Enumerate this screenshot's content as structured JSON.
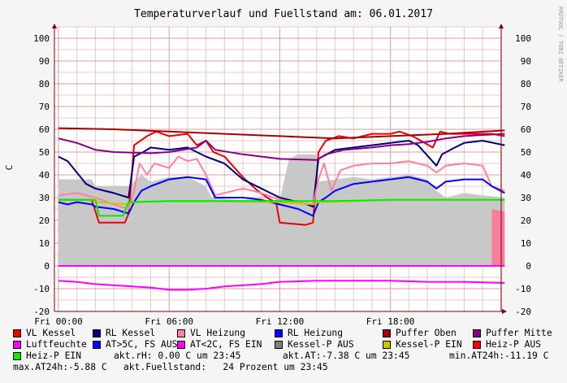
{
  "chart_data": {
    "type": "line",
    "title": "Temperaturverlauf und Fuellstand am: 06.01.2017",
    "watermark": "RRDTOOL / TOBI OETIKER",
    "ylabel": "C",
    "ylim": [
      -20,
      105
    ],
    "grid": true,
    "x_ticks": [
      {
        "label": "Fri 00:00",
        "h": 0
      },
      {
        "label": "Fri 06:00",
        "h": 6
      },
      {
        "label": "Fri 12:00",
        "h": 12
      },
      {
        "label": "Fri 18:00",
        "h": 18
      }
    ],
    "y_ticks_left": [
      "100",
      "90",
      "80",
      "70",
      "60",
      "50",
      "40",
      "30",
      "20",
      "10",
      "0",
      "-10",
      "-20"
    ],
    "y_ticks_right": [
      "100",
      "90",
      "80",
      "70",
      "60",
      "50",
      "40",
      "30",
      "20",
      "10",
      "0",
      "-10",
      "-20"
    ],
    "series": [
      {
        "name": "VL Kessel",
        "color": "#ee0000",
        "kind": "line",
        "points": [
          [
            0,
            29
          ],
          [
            1.8,
            29
          ],
          [
            2.2,
            19
          ],
          [
            3.6,
            19
          ],
          [
            3.8,
            23
          ],
          [
            4.1,
            53
          ],
          [
            4.8,
            57
          ],
          [
            5.3,
            59
          ],
          [
            6,
            57
          ],
          [
            7,
            58
          ],
          [
            7.5,
            53
          ],
          [
            8,
            55
          ],
          [
            8.4,
            50
          ],
          [
            9,
            48
          ],
          [
            10,
            39
          ],
          [
            10.8,
            33
          ],
          [
            11.5,
            29
          ],
          [
            11.8,
            28
          ],
          [
            12,
            19
          ],
          [
            13.4,
            18
          ],
          [
            13.8,
            19
          ],
          [
            14.1,
            50
          ],
          [
            14.5,
            55
          ],
          [
            15.2,
            57
          ],
          [
            16,
            56
          ],
          [
            17,
            58
          ],
          [
            18,
            58
          ],
          [
            18.5,
            59
          ],
          [
            19.2,
            57
          ],
          [
            20.3,
            52
          ],
          [
            20.7,
            59
          ],
          [
            21.2,
            58
          ],
          [
            22,
            58
          ],
          [
            23.5,
            58
          ],
          [
            24.2,
            57
          ]
        ]
      },
      {
        "name": "RL Kessel",
        "color": "#000080",
        "kind": "line",
        "points": [
          [
            0,
            48
          ],
          [
            0.5,
            46
          ],
          [
            1,
            41
          ],
          [
            1.5,
            36
          ],
          [
            2,
            34
          ],
          [
            3,
            32
          ],
          [
            3.8,
            30
          ],
          [
            4.1,
            48
          ],
          [
            4.6,
            50
          ],
          [
            5,
            52
          ],
          [
            6,
            51
          ],
          [
            7,
            52
          ],
          [
            7.5,
            50
          ],
          [
            8,
            48
          ],
          [
            9,
            45
          ],
          [
            10,
            38
          ],
          [
            11,
            34
          ],
          [
            12,
            30
          ],
          [
            13.5,
            27
          ],
          [
            13.8,
            26
          ],
          [
            14.1,
            47
          ],
          [
            15,
            51
          ],
          [
            16,
            52
          ],
          [
            17,
            53
          ],
          [
            18,
            54
          ],
          [
            19,
            55
          ],
          [
            19.5,
            53
          ],
          [
            20.5,
            44
          ],
          [
            20.8,
            49
          ],
          [
            21.5,
            52
          ],
          [
            22,
            54
          ],
          [
            23,
            55
          ],
          [
            24.2,
            53
          ]
        ]
      },
      {
        "name": "VL Heizung",
        "color": "#ff80a0",
        "kind": "line",
        "points": [
          [
            0,
            31
          ],
          [
            1,
            32
          ],
          [
            2,
            30
          ],
          [
            3,
            27
          ],
          [
            3.8,
            25
          ],
          [
            4.1,
            33
          ],
          [
            4.4,
            45
          ],
          [
            4.8,
            40
          ],
          [
            5.2,
            45
          ],
          [
            6,
            43
          ],
          [
            6.5,
            48
          ],
          [
            7,
            46
          ],
          [
            7.5,
            47
          ],
          [
            8,
            40
          ],
          [
            8.5,
            31
          ],
          [
            9,
            32
          ],
          [
            10,
            34
          ],
          [
            11,
            32
          ],
          [
            12,
            29
          ],
          [
            13,
            28
          ],
          [
            13.8,
            27
          ],
          [
            14.1,
            38
          ],
          [
            14.4,
            45
          ],
          [
            14.8,
            33
          ],
          [
            15.3,
            42
          ],
          [
            16,
            44
          ],
          [
            17,
            45
          ],
          [
            18,
            45
          ],
          [
            19,
            46
          ],
          [
            20,
            44
          ],
          [
            20.5,
            41
          ],
          [
            21,
            44
          ],
          [
            22,
            45
          ],
          [
            23,
            44
          ],
          [
            23.5,
            35
          ],
          [
            24.2,
            33
          ]
        ]
      },
      {
        "name": "RL Heizung",
        "color": "#0000ff",
        "kind": "line",
        "points": [
          [
            0,
            28
          ],
          [
            0.5,
            27
          ],
          [
            1,
            28
          ],
          [
            1.8,
            27
          ],
          [
            2,
            26
          ],
          [
            3,
            25
          ],
          [
            3.8,
            23
          ],
          [
            4.1,
            28
          ],
          [
            4.5,
            33
          ],
          [
            5,
            35
          ],
          [
            6,
            38
          ],
          [
            7,
            39
          ],
          [
            8,
            38
          ],
          [
            8.5,
            30
          ],
          [
            9,
            30
          ],
          [
            10,
            30
          ],
          [
            11,
            29
          ],
          [
            12,
            27
          ],
          [
            13,
            25
          ],
          [
            13.8,
            22
          ],
          [
            14.1,
            28
          ],
          [
            14.5,
            30
          ],
          [
            15,
            33
          ],
          [
            16,
            36
          ],
          [
            17,
            37
          ],
          [
            18,
            38
          ],
          [
            19,
            39
          ],
          [
            20,
            37
          ],
          [
            20.5,
            34
          ],
          [
            21,
            37
          ],
          [
            22,
            38
          ],
          [
            23,
            38
          ],
          [
            23.5,
            35
          ],
          [
            24.2,
            32
          ]
        ]
      },
      {
        "name": "Puffer Oben",
        "color": "#aa0000",
        "kind": "line",
        "points": [
          [
            0,
            60.5
          ],
          [
            3,
            60
          ],
          [
            6,
            59
          ],
          [
            9,
            58
          ],
          [
            12,
            57
          ],
          [
            15,
            56
          ],
          [
            18,
            57
          ],
          [
            21,
            58
          ],
          [
            24.2,
            59.5
          ]
        ]
      },
      {
        "name": "Puffer Mitte",
        "color": "#880088",
        "kind": "line",
        "points": [
          [
            0,
            56
          ],
          [
            1,
            54
          ],
          [
            2,
            51
          ],
          [
            3,
            50
          ],
          [
            5,
            49.5
          ],
          [
            6,
            50
          ],
          [
            7.5,
            52
          ],
          [
            8,
            55
          ],
          [
            8.5,
            51
          ],
          [
            10,
            49
          ],
          [
            12,
            47
          ],
          [
            14,
            46.5
          ],
          [
            14.5,
            49
          ],
          [
            15.5,
            51
          ],
          [
            17,
            52
          ],
          [
            18,
            53
          ],
          [
            19,
            53.5
          ],
          [
            20,
            54.5
          ],
          [
            21,
            56
          ],
          [
            22,
            57
          ],
          [
            23,
            57.5
          ],
          [
            24.2,
            58
          ]
        ]
      },
      {
        "name": "Luftfeuchte",
        "color": "#ff00ff",
        "kind": "line",
        "points": [
          [
            0,
            0
          ],
          [
            24.2,
            0
          ]
        ]
      },
      {
        "name": "AT>5C, FS AUS",
        "color": "#0000ff",
        "kind": "legend-only"
      },
      {
        "name": "AT<2C, FS EIN",
        "color": "#ff00ff",
        "kind": "line",
        "points": [
          [
            0,
            -6.5
          ],
          [
            1,
            -7
          ],
          [
            2,
            -8
          ],
          [
            3,
            -8.5
          ],
          [
            4,
            -9
          ],
          [
            5,
            -9.5
          ],
          [
            6,
            -10.5
          ],
          [
            7,
            -10.5
          ],
          [
            8,
            -10
          ],
          [
            9,
            -9
          ],
          [
            11,
            -8
          ],
          [
            12,
            -7
          ],
          [
            14,
            -6.5
          ],
          [
            16,
            -6.5
          ],
          [
            18,
            -6.5
          ],
          [
            20,
            -7
          ],
          [
            22,
            -7
          ],
          [
            24.2,
            -7.5
          ]
        ]
      },
      {
        "name": "Kessel-P AUS",
        "color": "#808080",
        "kind": "area",
        "points": [
          [
            0,
            38
          ],
          [
            1.8,
            38
          ],
          [
            2,
            35
          ],
          [
            3.8,
            35
          ],
          [
            4.1,
            37
          ],
          [
            4.5,
            40
          ],
          [
            5,
            37
          ],
          [
            6,
            39
          ],
          [
            7,
            39
          ],
          [
            8,
            35
          ],
          [
            8.3,
            30
          ],
          [
            10,
            29
          ],
          [
            12,
            29
          ],
          [
            12.5,
            47
          ],
          [
            13,
            49
          ],
          [
            14,
            49
          ],
          [
            14.1,
            37
          ],
          [
            15,
            38
          ],
          [
            16,
            39
          ],
          [
            17,
            38
          ],
          [
            18,
            39
          ],
          [
            19,
            40
          ],
          [
            20,
            38
          ],
          [
            20.5,
            33
          ],
          [
            21,
            30
          ],
          [
            22,
            32
          ],
          [
            23,
            31
          ],
          [
            24.2,
            30
          ]
        ]
      },
      {
        "name": "Kessel-P EIN",
        "color": "#c8c800",
        "kind": "line",
        "points": [
          [
            0,
            29
          ],
          [
            1.8,
            29
          ],
          [
            2.2,
            28
          ],
          [
            3.8,
            27
          ],
          [
            4.1,
            28
          ],
          [
            6,
            28.5
          ],
          [
            8,
            28.5
          ],
          [
            12,
            28
          ],
          [
            13.8,
            27
          ],
          [
            14.1,
            28
          ],
          [
            18,
            29
          ],
          [
            24.2,
            29
          ]
        ]
      },
      {
        "name": "Heiz-P AUS",
        "color": "#ff0000",
        "kind": "area",
        "points": [
          [
            23.5,
            25
          ],
          [
            23.8,
            24.5
          ],
          [
            24.2,
            24
          ]
        ]
      },
      {
        "name": "Heiz-P EIN",
        "color": "#00ee00",
        "kind": "line",
        "points": [
          [
            0,
            29
          ],
          [
            2,
            29
          ],
          [
            2.2,
            22
          ],
          [
            3.5,
            22
          ],
          [
            3.8,
            28
          ],
          [
            6,
            28.5
          ],
          [
            9,
            28.5
          ],
          [
            12,
            28.5
          ],
          [
            15,
            28.5
          ],
          [
            18,
            29
          ],
          [
            24.2,
            29
          ]
        ]
      }
    ]
  },
  "stats": {
    "akt_rh": "akt.rH: 0.00 C um 23:45",
    "akt_at": "akt.AT:-7.38 C um 23:45",
    "min_at24": "min.AT24h:-11.19 C",
    "max_at24": "max.AT24h:-5.88 C",
    "akt_fuellstand": "akt.Fuellstand:   24 Prozent um 23:45"
  },
  "colors": {
    "canvas": "#ffffff",
    "back": "#f5f5f5",
    "grid_minor": "#f2c4c4",
    "grid_major": "#e39a9a",
    "axis": "#800000"
  }
}
